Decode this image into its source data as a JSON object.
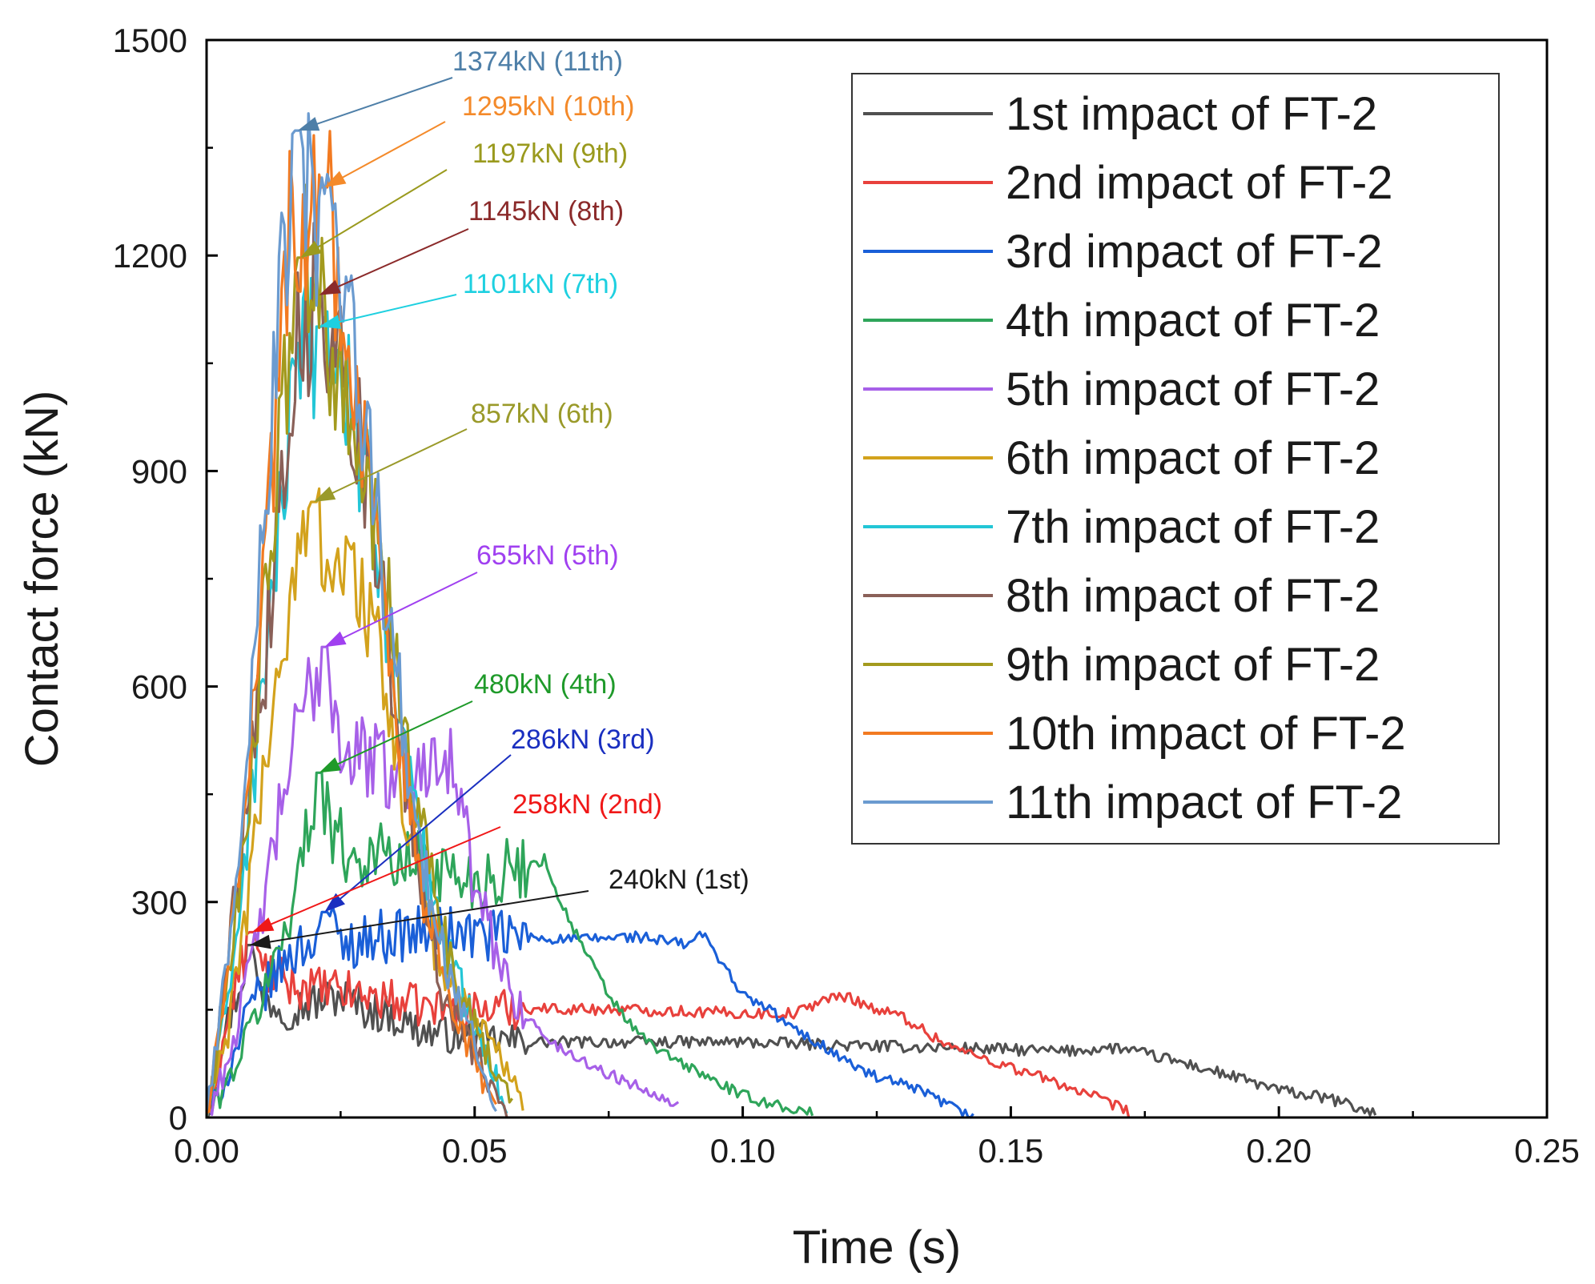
{
  "chart_data": {
    "type": "line",
    "title": "",
    "xlabel": "Time (s)",
    "ylabel": "Contact force (kN)",
    "xlim": [
      0,
      0.25
    ],
    "ylim": [
      0,
      1500
    ],
    "xticks": [
      "0.00",
      "0.05",
      "0.10",
      "0.15",
      "0.20",
      "0.25"
    ],
    "yticks": [
      "0",
      "300",
      "600",
      "900",
      "1200",
      "1500"
    ],
    "grid": false,
    "legend_position": "top-right",
    "series": [
      {
        "name": "1st impact of FT-2",
        "color": "#505050",
        "duration": 0.218,
        "peak": 240,
        "peak_t": 0.008,
        "points": [
          [
            0,
            0
          ],
          [
            0.003,
            110
          ],
          [
            0.006,
            180
          ],
          [
            0.008,
            240
          ],
          [
            0.01,
            170
          ],
          [
            0.015,
            150
          ],
          [
            0.02,
            160
          ],
          [
            0.025,
            170
          ],
          [
            0.03,
            150
          ],
          [
            0.035,
            140
          ],
          [
            0.04,
            120
          ],
          [
            0.05,
            110
          ],
          [
            0.06,
            105
          ],
          [
            0.08,
            105
          ],
          [
            0.1,
            105
          ],
          [
            0.12,
            100
          ],
          [
            0.14,
            97
          ],
          [
            0.16,
            92
          ],
          [
            0.165,
            95
          ],
          [
            0.17,
            97
          ],
          [
            0.18,
            80
          ],
          [
            0.19,
            60
          ],
          [
            0.2,
            38
          ],
          [
            0.21,
            25
          ],
          [
            0.218,
            5
          ]
        ]
      },
      {
        "name": "2nd impact of FT-2",
        "color": "#e8413c",
        "duration": 0.172,
        "peak": 258,
        "peak_t": 0.0085,
        "points": [
          [
            0,
            0
          ],
          [
            0.003,
            100
          ],
          [
            0.006,
            200
          ],
          [
            0.0085,
            258
          ],
          [
            0.01,
            210
          ],
          [
            0.015,
            185
          ],
          [
            0.02,
            180
          ],
          [
            0.03,
            170
          ],
          [
            0.04,
            155
          ],
          [
            0.05,
            150
          ],
          [
            0.06,
            152
          ],
          [
            0.08,
            150
          ],
          [
            0.1,
            145
          ],
          [
            0.11,
            145
          ],
          [
            0.115,
            165
          ],
          [
            0.12,
            168
          ],
          [
            0.125,
            150
          ],
          [
            0.13,
            140
          ],
          [
            0.135,
            115
          ],
          [
            0.14,
            95
          ],
          [
            0.15,
            70
          ],
          [
            0.16,
            45
          ],
          [
            0.165,
            30
          ],
          [
            0.172,
            8
          ]
        ]
      },
      {
        "name": "3rd impact of FT-2",
        "color": "#1a5fd8",
        "duration": 0.143,
        "peak": 286,
        "peak_t": 0.022,
        "points": [
          [
            0,
            0
          ],
          [
            0.004,
            60
          ],
          [
            0.008,
            150
          ],
          [
            0.012,
            190
          ],
          [
            0.016,
            230
          ],
          [
            0.02,
            250
          ],
          [
            0.022,
            286
          ],
          [
            0.025,
            240
          ],
          [
            0.03,
            250
          ],
          [
            0.04,
            258
          ],
          [
            0.05,
            255
          ],
          [
            0.06,
            250
          ],
          [
            0.07,
            248
          ],
          [
            0.08,
            252
          ],
          [
            0.09,
            240
          ],
          [
            0.092,
            258
          ],
          [
            0.095,
            230
          ],
          [
            0.1,
            170
          ],
          [
            0.105,
            150
          ],
          [
            0.11,
            120
          ],
          [
            0.115,
            100
          ],
          [
            0.12,
            75
          ],
          [
            0.125,
            55
          ],
          [
            0.13,
            45
          ],
          [
            0.135,
            30
          ],
          [
            0.14,
            10
          ],
          [
            0.143,
            0
          ]
        ]
      },
      {
        "name": "4th impact of FT-2",
        "color": "#2ea55a",
        "duration": 0.113,
        "peak": 480,
        "peak_t": 0.021,
        "points": [
          [
            0,
            0
          ],
          [
            0.004,
            50
          ],
          [
            0.008,
            120
          ],
          [
            0.012,
            200
          ],
          [
            0.016,
            300
          ],
          [
            0.019,
            400
          ],
          [
            0.021,
            480
          ],
          [
            0.024,
            390
          ],
          [
            0.028,
            360
          ],
          [
            0.032,
            370
          ],
          [
            0.036,
            350
          ],
          [
            0.04,
            360
          ],
          [
            0.045,
            340
          ],
          [
            0.05,
            330
          ],
          [
            0.055,
            340
          ],
          [
            0.06,
            350
          ],
          [
            0.063,
            360
          ],
          [
            0.066,
            300
          ],
          [
            0.07,
            240
          ],
          [
            0.075,
            170
          ],
          [
            0.08,
            120
          ],
          [
            0.085,
            90
          ],
          [
            0.09,
            70
          ],
          [
            0.095,
            50
          ],
          [
            0.1,
            30
          ],
          [
            0.105,
            20
          ],
          [
            0.113,
            5
          ]
        ]
      },
      {
        "name": "5th impact of FT-2",
        "color": "#a760e8",
        "duration": 0.088,
        "peak": 655,
        "peak_t": 0.022,
        "points": [
          [
            0,
            0
          ],
          [
            0.004,
            80
          ],
          [
            0.008,
            200
          ],
          [
            0.012,
            350
          ],
          [
            0.015,
            480
          ],
          [
            0.018,
            560
          ],
          [
            0.022,
            655
          ],
          [
            0.025,
            520
          ],
          [
            0.03,
            500
          ],
          [
            0.035,
            480
          ],
          [
            0.04,
            470
          ],
          [
            0.042,
            520
          ],
          [
            0.044,
            530
          ],
          [
            0.047,
            450
          ],
          [
            0.05,
            320
          ],
          [
            0.054,
            230
          ],
          [
            0.058,
            160
          ],
          [
            0.062,
            120
          ],
          [
            0.066,
            95
          ],
          [
            0.07,
            80
          ],
          [
            0.075,
            60
          ],
          [
            0.08,
            45
          ],
          [
            0.085,
            30
          ],
          [
            0.088,
            18
          ]
        ]
      },
      {
        "name": "6th impact of FT-2",
        "color": "#d3a21c",
        "duration": 0.059,
        "peak": 857,
        "peak_t": 0.02,
        "points": [
          [
            0,
            0
          ],
          [
            0.004,
            120
          ],
          [
            0.008,
            320
          ],
          [
            0.012,
            560
          ],
          [
            0.016,
            720
          ],
          [
            0.018,
            800
          ],
          [
            0.02,
            857
          ],
          [
            0.023,
            780
          ],
          [
            0.026,
            760
          ],
          [
            0.03,
            720
          ],
          [
            0.034,
            560
          ],
          [
            0.038,
            380
          ],
          [
            0.042,
            250
          ],
          [
            0.046,
            180
          ],
          [
            0.05,
            140
          ],
          [
            0.054,
            100
          ],
          [
            0.057,
            60
          ],
          [
            0.059,
            20
          ]
        ]
      },
      {
        "name": "7th impact of FT-2",
        "color": "#23c6d6",
        "duration": 0.056,
        "peak": 1101,
        "peak_t": 0.021,
        "points": [
          [
            0,
            0
          ],
          [
            0.004,
            160
          ],
          [
            0.008,
            420
          ],
          [
            0.012,
            720
          ],
          [
            0.015,
            920
          ],
          [
            0.018,
            1040
          ],
          [
            0.021,
            1101
          ],
          [
            0.024,
            1050
          ],
          [
            0.028,
            960
          ],
          [
            0.032,
            780
          ],
          [
            0.036,
            560
          ],
          [
            0.04,
            380
          ],
          [
            0.044,
            250
          ],
          [
            0.048,
            170
          ],
          [
            0.052,
            100
          ],
          [
            0.056,
            10
          ]
        ]
      },
      {
        "name": "8th impact of FT-2",
        "color": "#8a6058",
        "duration": 0.056,
        "peak": 1145,
        "peak_t": 0.021,
        "points": [
          [
            0,
            0
          ],
          [
            0.004,
            220
          ],
          [
            0.008,
            500
          ],
          [
            0.011,
            640
          ],
          [
            0.014,
            900
          ],
          [
            0.017,
            1080
          ],
          [
            0.019,
            1120
          ],
          [
            0.021,
            1145
          ],
          [
            0.024,
            1100
          ],
          [
            0.028,
            980
          ],
          [
            0.032,
            760
          ],
          [
            0.036,
            520
          ],
          [
            0.04,
            300
          ],
          [
            0.044,
            180
          ],
          [
            0.048,
            120
          ],
          [
            0.052,
            60
          ],
          [
            0.056,
            8
          ]
        ]
      },
      {
        "name": "9th impact of FT-2",
        "color": "#a39a1e",
        "duration": 0.057,
        "peak": 1197,
        "peak_t": 0.0175,
        "points": [
          [
            0,
            0
          ],
          [
            0.004,
            180
          ],
          [
            0.008,
            460
          ],
          [
            0.011,
            720
          ],
          [
            0.014,
            960
          ],
          [
            0.0175,
            1197
          ],
          [
            0.021,
            1140
          ],
          [
            0.025,
            1000
          ],
          [
            0.029,
            880
          ],
          [
            0.033,
            760
          ],
          [
            0.037,
            540
          ],
          [
            0.041,
            360
          ],
          [
            0.045,
            230
          ],
          [
            0.049,
            150
          ],
          [
            0.053,
            80
          ],
          [
            0.057,
            15
          ]
        ]
      },
      {
        "name": "10th impact of FT-2",
        "color": "#f27a21",
        "duration": 0.054,
        "peak": 1295,
        "peak_t": 0.022,
        "points": [
          [
            0,
            0
          ],
          [
            0.004,
            200
          ],
          [
            0.008,
            520
          ],
          [
            0.011,
            800
          ],
          [
            0.014,
            1080
          ],
          [
            0.016,
            1280
          ],
          [
            0.019,
            1250
          ],
          [
            0.022,
            1295
          ],
          [
            0.025,
            1150
          ],
          [
            0.028,
            980
          ],
          [
            0.032,
            780
          ],
          [
            0.036,
            540
          ],
          [
            0.04,
            330
          ],
          [
            0.044,
            200
          ],
          [
            0.048,
            120
          ],
          [
            0.051,
            60
          ],
          [
            0.054,
            8
          ]
        ]
      },
      {
        "name": "11th impact of FT-2",
        "color": "#6b9bd0",
        "duration": 0.054,
        "peak": 1374,
        "peak_t": 0.017,
        "points": [
          [
            0,
            0
          ],
          [
            0.004,
            230
          ],
          [
            0.008,
            560
          ],
          [
            0.011,
            860
          ],
          [
            0.014,
            1160
          ],
          [
            0.017,
            1374
          ],
          [
            0.02,
            1240
          ],
          [
            0.023,
            1200
          ],
          [
            0.026,
            1120
          ],
          [
            0.03,
            940
          ],
          [
            0.034,
            700
          ],
          [
            0.038,
            470
          ],
          [
            0.042,
            290
          ],
          [
            0.046,
            180
          ],
          [
            0.05,
            100
          ],
          [
            0.054,
            10
          ]
        ]
      }
    ],
    "annotations": [
      {
        "text": "1374kN (11th)",
        "color": "#4e7fa8",
        "x": 0.017,
        "y": 1374
      },
      {
        "text": "1295kN (10th)",
        "color": "#f48a2a",
        "x": 0.022,
        "y": 1295
      },
      {
        "text": "1197kN (9th)",
        "color": "#9a9a1e",
        "x": 0.0175,
        "y": 1197
      },
      {
        "text": "1145kN (8th)",
        "color": "#8b2a2a",
        "x": 0.021,
        "y": 1145
      },
      {
        "text": "1101kN (7th)",
        "color": "#1ed0e0",
        "x": 0.021,
        "y": 1101
      },
      {
        "text": "857kN (6th)",
        "color": "#9a9a2a",
        "x": 0.02,
        "y": 857
      },
      {
        "text": "655kN (5th)",
        "color": "#a040f0",
        "x": 0.022,
        "y": 655
      },
      {
        "text": "480kN (4th)",
        "color": "#1f9a2a",
        "x": 0.021,
        "y": 480
      },
      {
        "text": "286kN (3rd)",
        "color": "#1a2fc0",
        "x": 0.022,
        "y": 286
      },
      {
        "text": "258kN (2nd)",
        "color": "#f01818",
        "x": 0.0085,
        "y": 258
      },
      {
        "text": "240kN (1st)",
        "color": "#1a1a1a",
        "x": 0.008,
        "y": 240
      }
    ]
  }
}
